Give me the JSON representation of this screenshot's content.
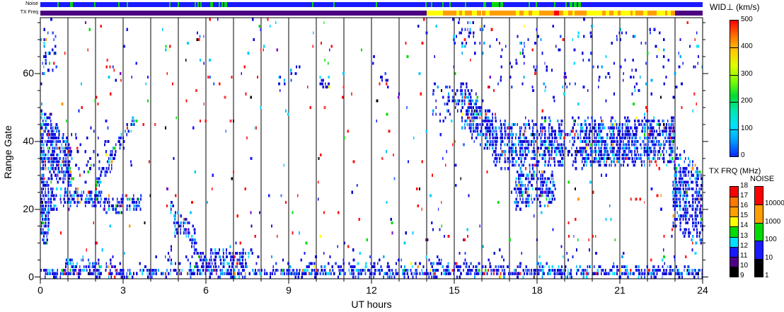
{
  "strips": {
    "noise": {
      "label": "Noise",
      "base_color": "#1a1aff",
      "mark_color": "#00dc00",
      "mark_density": 0.08
    },
    "txfreq": {
      "label": "TX Freq",
      "segments": [
        {
          "t": [
            0,
            14
          ],
          "type": "solid",
          "color": "#4b0082"
        },
        {
          "t": [
            14,
            23
          ],
          "type": "mix",
          "colors": [
            "#ff9e00",
            "#ffff00"
          ],
          "accent": "#ff0000",
          "accent_p": 0.03,
          "mix_p": 0.45
        },
        {
          "t": [
            23,
            24
          ],
          "type": "solid",
          "color": "#4b0082"
        }
      ]
    }
  },
  "axes": {
    "x": {
      "label": "UT hours",
      "min": 0,
      "max": 24,
      "major_ticks": [
        0,
        3,
        6,
        9,
        12,
        15,
        18,
        21,
        24
      ],
      "minor_step": 1
    },
    "y": {
      "label": "Range Gate",
      "min": 0,
      "max": 76,
      "major_ticks": [
        0,
        20,
        40,
        60
      ],
      "minor_step": 5
    }
  },
  "colorbars": {
    "wid": {
      "title": "WID⊥ (km/s)",
      "ticks": [
        500,
        400,
        300,
        200,
        100,
        0
      ],
      "gradient_top_to_bottom": [
        "#ff0000",
        "#ff6e00",
        "#ffc800",
        "#e1ff00",
        "#7dff00",
        "#00dc32",
        "#00e6b4",
        "#00e1ff",
        "#009bff",
        "#0a28ff"
      ]
    },
    "txfrq": {
      "title": "TX FRQ (MHz)",
      "labels": [
        18,
        17,
        16,
        15,
        14,
        13,
        12,
        11,
        10,
        9
      ],
      "segments_top_to_bottom": [
        "#ff0000",
        "#ff7800",
        "#ffa000",
        "#ffff00",
        "#00dc00",
        "#00e1ff",
        "#1a1aff",
        "#520085",
        "#000000"
      ]
    },
    "noise": {
      "title": "NOISE",
      "labels": [
        "10000",
        "1000",
        "100",
        "10",
        "1"
      ],
      "segments_top_to_bottom": [
        "#ff0000",
        "#ffa000",
        "#00dc00",
        "#1a1aff",
        "#000000"
      ]
    }
  },
  "chart_data": {
    "type": "heatmap",
    "subtype": "radar-range-time-speckle",
    "x": {
      "label": "UT hours",
      "range": [
        0,
        24
      ],
      "gridline_every_hour": true
    },
    "y": {
      "label": "Range Gate",
      "range": [
        0,
        76
      ]
    },
    "value": {
      "label": "WID⊥ (km/s)",
      "range": [
        0,
        500
      ]
    },
    "background_speckle_density": 0.013,
    "palettes": {
      "background": [
        [
          "#ff1010",
          0.3
        ],
        [
          "#1a1aff",
          0.2
        ],
        [
          "#0000c8",
          0.06
        ],
        [
          "#00cdff",
          0.12
        ],
        [
          "#3c78ff",
          0.06
        ],
        [
          "#00dc00",
          0.09
        ],
        [
          "#000000",
          0.04
        ],
        [
          "#7d00c8",
          0.03
        ],
        [
          "#ff9600",
          0.02
        ],
        [
          "#ffff00",
          0.02
        ],
        [
          "#ff4040",
          0.06
        ]
      ],
      "dense": [
        [
          "#1414e6",
          0.46
        ],
        [
          "#0000c8",
          0.17
        ],
        [
          "#2850ff",
          0.12
        ],
        [
          "#00aaff",
          0.1
        ],
        [
          "#00e1ff",
          0.07
        ],
        [
          "#ff2020",
          0.025
        ],
        [
          "#00dc00",
          0.015
        ],
        [
          "#ffff00",
          0.005
        ],
        [
          "#000000",
          0.005
        ],
        [
          "#7d00c8",
          0.01
        ],
        [
          "#ff9600",
          0.01
        ]
      ]
    },
    "regions": [
      {
        "name": "bottom-band",
        "t": [
          0,
          24
        ],
        "lo": [
          0,
          0
        ],
        "hi": [
          2.5,
          2.5
        ],
        "d": 0.55
      },
      {
        "name": "bottom-band-early",
        "t": [
          0.9,
          2.7
        ],
        "lo": [
          2,
          2
        ],
        "hi": [
          6,
          4
        ],
        "d": 0.45
      },
      {
        "name": "low-halo",
        "t": [
          2.5,
          24
        ],
        "lo": [
          2.5,
          2.5
        ],
        "hi": [
          9,
          9
        ],
        "d": 0.06
      },
      {
        "name": "morning-blob",
        "t": [
          6.1,
          7.45
        ],
        "lo": [
          1,
          1
        ],
        "hi": [
          10,
          8
        ],
        "d": 0.5
      },
      {
        "name": "morning-blob-lead",
        "t": [
          5.3,
          6.1
        ],
        "lo": [
          1,
          1
        ],
        "hi": [
          5,
          6
        ],
        "d": 0.35
      },
      {
        "name": "midday-thick",
        "t": [
          9.6,
          16.3
        ],
        "lo": [
          0,
          0
        ],
        "hi": [
          4.5,
          4.5
        ],
        "d": 0.33
      },
      {
        "name": "evening-bottom",
        "t": [
          16.3,
          24
        ],
        "lo": [
          0,
          0
        ],
        "hi": [
          3.5,
          3.5
        ],
        "d": 0.4
      },
      {
        "name": "left-blob-upper",
        "t": [
          0,
          1.15
        ],
        "lo": [
          30,
          26
        ],
        "hi": [
          52,
          40
        ],
        "d": 0.5
      },
      {
        "name": "left-blob-lower",
        "t": [
          0,
          0.65
        ],
        "lo": [
          16,
          20
        ],
        "hi": [
          31,
          27
        ],
        "d": 0.5
      },
      {
        "name": "left-column",
        "t": [
          0.02,
          0.3
        ],
        "lo": [
          8,
          9
        ],
        "hi": [
          32,
          30
        ],
        "d": 0.6
      },
      {
        "name": "band-20-25",
        "t": [
          0.7,
          2.2
        ],
        "lo": [
          21,
          21
        ],
        "hi": [
          27,
          25
        ],
        "d": 0.5
      },
      {
        "name": "band-20-25-ext",
        "t": [
          2.2,
          3.65
        ],
        "lo": [
          19,
          19
        ],
        "hi": [
          25,
          24
        ],
        "d": 0.4
      },
      {
        "name": "diag-up",
        "t": [
          2.0,
          3.4
        ],
        "lo": [
          25,
          44
        ],
        "hi": [
          30,
          50
        ],
        "d": 0.5
      },
      {
        "name": "diag-down",
        "t": [
          4.7,
          6.0
        ],
        "lo": [
          19,
          1
        ],
        "hi": [
          24,
          5
        ],
        "d": 0.5
      },
      {
        "name": "blob-5h",
        "t": [
          4.8,
          5.6
        ],
        "lo": [
          12,
          10
        ],
        "hi": [
          21,
          16
        ],
        "d": 0.45
      },
      {
        "name": "left-mid-sparse",
        "t": [
          1.2,
          2.6
        ],
        "lo": [
          27,
          30
        ],
        "hi": [
          44,
          44
        ],
        "d": 0.12
      },
      {
        "name": "upperleft-sparse",
        "t": [
          0,
          0.6
        ],
        "lo": [
          56,
          56
        ],
        "hi": [
          77,
          77
        ],
        "d": 0.12
      },
      {
        "name": "cluster-9h-top",
        "t": [
          8.6,
          9.4
        ],
        "lo": [
          55,
          55
        ],
        "hi": [
          64,
          64
        ],
        "d": 0.1
      },
      {
        "name": "dash-10h",
        "t": [
          10.1,
          10.45
        ],
        "lo": [
          55,
          56
        ],
        "hi": [
          59,
          59
        ],
        "d": 0.7
      },
      {
        "name": "dash-12h",
        "t": [
          12.3,
          12.6
        ],
        "lo": [
          57,
          57
        ],
        "hi": [
          60,
          60
        ],
        "d": 0.45
      },
      {
        "name": "pre-front",
        "t": [
          14.2,
          15.25
        ],
        "lo": [
          44,
          46
        ],
        "hi": [
          58,
          56
        ],
        "d": 0.18
      },
      {
        "name": "front",
        "t": [
          15.2,
          16.5
        ],
        "lo": [
          44,
          34
        ],
        "hi": [
          59,
          48
        ],
        "d": 0.55
      },
      {
        "name": "main-band",
        "t": [
          16.4,
          22.95
        ],
        "lo": [
          31,
          33
        ],
        "hi": [
          48,
          47
        ],
        "d": 0.55
      },
      {
        "name": "band-bulge",
        "t": [
          17.15,
          18.65
        ],
        "lo": [
          19,
          21
        ],
        "hi": [
          33,
          33
        ],
        "d": 0.5
      },
      {
        "name": "band-drop",
        "t": [
          22.9,
          24
        ],
        "lo": [
          13,
          9
        ],
        "hi": [
          40,
          33
        ],
        "d": 0.55
      },
      {
        "name": "top-dashes-15h",
        "t": [
          14.9,
          16.1
        ],
        "lo": [
          66,
          66
        ],
        "hi": [
          77,
          77
        ],
        "d": 0.22
      },
      {
        "name": "top-sparse-evening",
        "t": [
          16.5,
          24
        ],
        "lo": [
          52,
          52
        ],
        "hi": [
          77,
          77
        ],
        "d": 0.05
      }
    ]
  }
}
